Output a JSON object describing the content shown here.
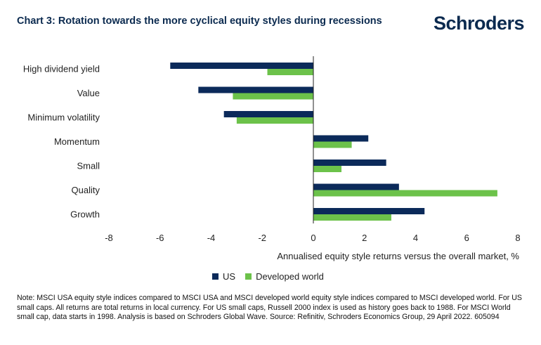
{
  "header": {
    "title": "Chart 3: Rotation towards the more cyclical equity styles during recessions",
    "logo_text": "Schroders"
  },
  "chart_data": {
    "type": "bar",
    "orientation": "horizontal",
    "categories": [
      "High dividend yield",
      "Value",
      "Minimum volatility",
      "Momentum",
      "Small",
      "Quality",
      "Growth"
    ],
    "series": [
      {
        "name": "US",
        "color": "#0b2a5a",
        "values": [
          -5.6,
          -4.5,
          -3.5,
          2.15,
          2.85,
          3.35,
          4.35
        ]
      },
      {
        "name": "Developed world",
        "color": "#6cc24a",
        "values": [
          -1.8,
          -3.15,
          -3.0,
          1.5,
          1.1,
          7.2,
          3.05
        ]
      }
    ],
    "xlim": [
      -8,
      8
    ],
    "xticks": [
      "-8",
      "-6",
      "-4",
      "-2",
      "0",
      "2",
      "4",
      "6",
      "8"
    ],
    "xlabel": "Annualised equity style returns versus the overall market, %",
    "legend_position": "bottom"
  },
  "legend": {
    "items": [
      {
        "label": "US",
        "color": "#0b2a5a"
      },
      {
        "label": "Developed world",
        "color": "#6cc24a"
      }
    ]
  },
  "footer": {
    "note": "Note: MSCI USA equity style indices compared to MSCI USA and MSCI developed world equity style indices compared to MSCI developed world. For US small caps. All returns are total returns in local currency. For US small caps, Russell 2000 index is used as history goes back to 1988. For MSCI World small cap, data starts in 1998. Analysis is based on Schroders Global Wave. Source: Refinitiv, Schroders Economics Group, 29 April 2022. 605094"
  }
}
